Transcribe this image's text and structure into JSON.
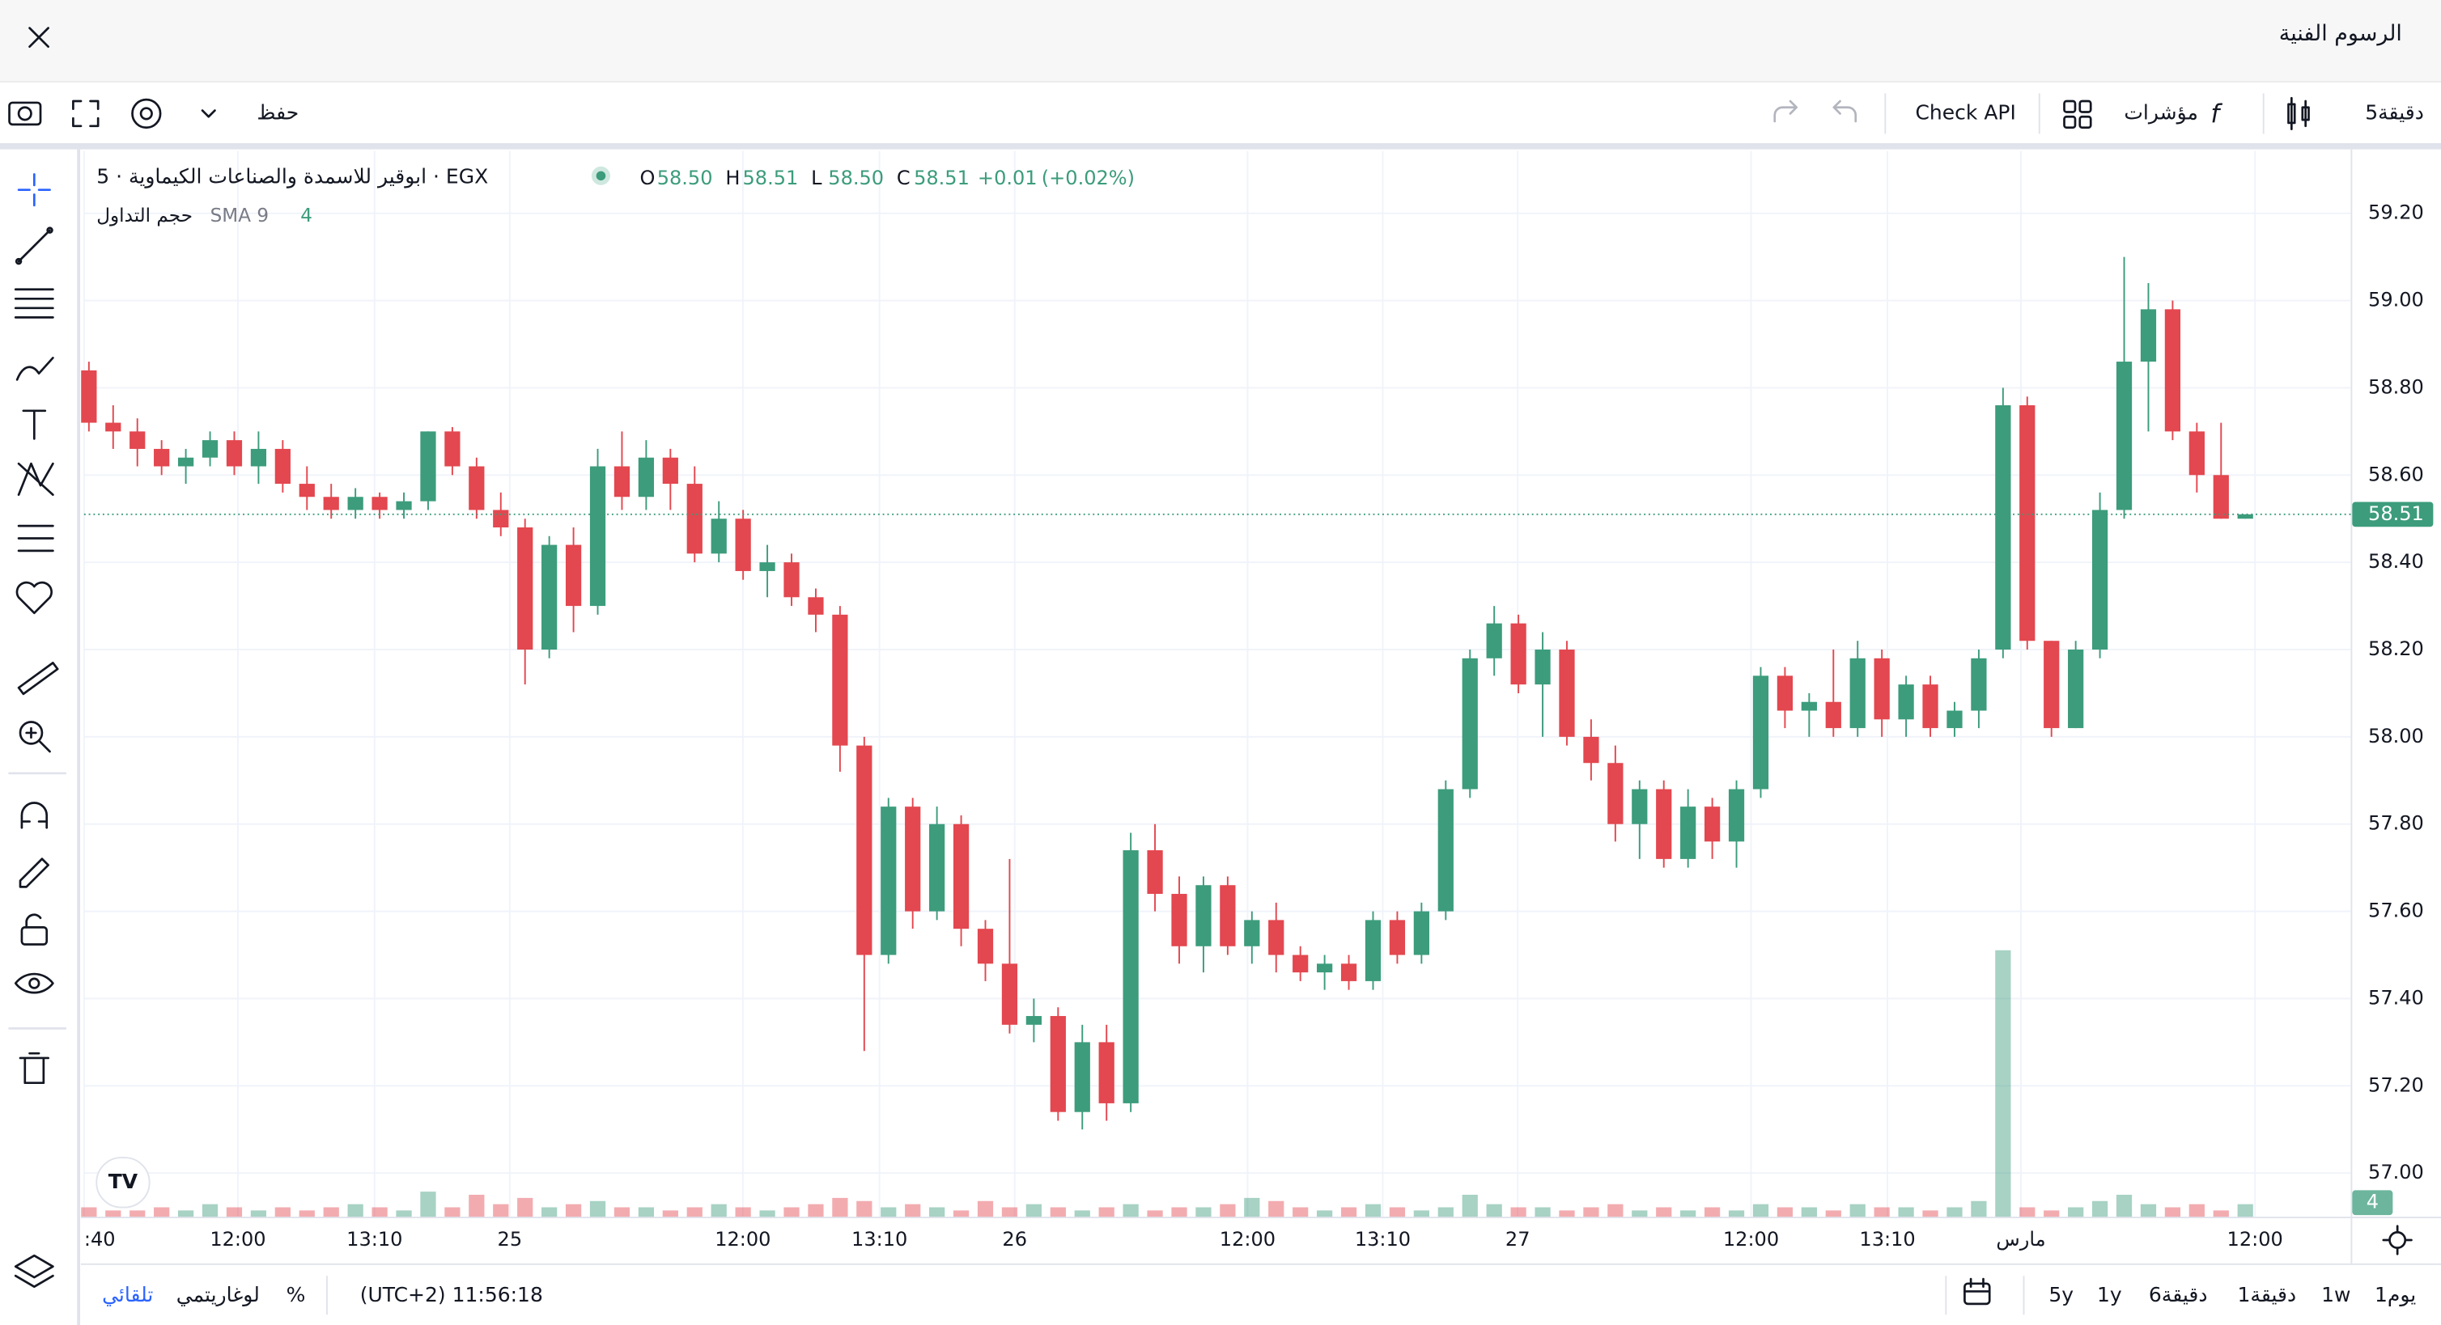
{
  "header": {
    "title": "الرسوم الفنية"
  },
  "toolbar": {
    "interval": "5دقيقة",
    "indicators": "مؤشرات",
    "check_api": "Check API",
    "save": "حفظ"
  },
  "bottom_bar": {
    "ranges": [
      "1يوم",
      "1w",
      "1دقيقة",
      "6دقيقة",
      "1y",
      "5y"
    ],
    "clock": "(UTC+2) 11:56:18",
    "percent": "%",
    "log": "لوغاريتمي",
    "auto": "تلقائي"
  },
  "chart_data": {
    "type": "candlestick",
    "symbol": "ابوقير للاسمدة والصناعات الكيماوية · 5 · EGX",
    "legend_labels": [
      "O",
      "H",
      "L",
      "C"
    ],
    "legend_values": [
      "58.50",
      "58.51",
      "58.50",
      "58.51"
    ],
    "change": "+0.01",
    "change_pct": "(+0.02%)",
    "volume_name": "حجم التداول",
    "sma_name": "SMA 9",
    "up_color": "#3c9c7c",
    "down_color": "#e3474f",
    "grid": true,
    "ylim": [
      56.9,
      59.343
    ],
    "yticks": [
      {
        "value": 57.0,
        "label": "57.00"
      },
      {
        "value": 57.2,
        "label": "57.20"
      },
      {
        "value": 57.4,
        "label": "57.40"
      },
      {
        "value": 57.6,
        "label": "57.60"
      },
      {
        "value": 57.8,
        "label": "57.80"
      },
      {
        "value": 58.0,
        "label": "58.00"
      },
      {
        "value": 58.2,
        "label": "58.20"
      },
      {
        "value": 58.4,
        "label": "58.40"
      },
      {
        "value": 58.6,
        "label": "58.60"
      },
      {
        "value": 58.8,
        "label": "58.80"
      },
      {
        "value": 59.0,
        "label": "59.00"
      },
      {
        "value": 59.2,
        "label": "59.20"
      }
    ],
    "xlim": [
      -0.2,
      93.35
    ],
    "xticks": [
      {
        "value": -0.2,
        "label": ":40"
      },
      {
        "value": 6.15,
        "label": "12:00"
      },
      {
        "value": 11.79,
        "label": "13:10"
      },
      {
        "value": 17.37,
        "label": "25"
      },
      {
        "value": 26.99,
        "label": "12:00"
      },
      {
        "value": 32.63,
        "label": "13:10"
      },
      {
        "value": 38.21,
        "label": "26"
      },
      {
        "value": 47.82,
        "label": "12:00"
      },
      {
        "value": 53.4,
        "label": "13:10"
      },
      {
        "value": 58.97,
        "label": "27"
      },
      {
        "value": 68.6,
        "label": "12:00"
      },
      {
        "value": 74.23,
        "label": "13:10"
      },
      {
        "value": 79.74,
        "label": "مارس"
      },
      {
        "value": 89.4,
        "label": "12:00"
      }
    ],
    "ohlc": [
      [
        58.84,
        58.86,
        58.7,
        58.72
      ],
      [
        58.72,
        58.76,
        58.66,
        58.7
      ],
      [
        58.7,
        58.73,
        58.62,
        58.66
      ],
      [
        58.66,
        58.68,
        58.6,
        58.62
      ],
      [
        58.62,
        58.66,
        58.58,
        58.64
      ],
      [
        58.64,
        58.7,
        58.62,
        58.68
      ],
      [
        58.68,
        58.7,
        58.6,
        58.62
      ],
      [
        58.62,
        58.7,
        58.58,
        58.66
      ],
      [
        58.66,
        58.68,
        58.56,
        58.58
      ],
      [
        58.58,
        58.62,
        58.52,
        58.55
      ],
      [
        58.55,
        58.58,
        58.5,
        58.52
      ],
      [
        58.52,
        58.57,
        58.5,
        58.55
      ],
      [
        58.55,
        58.56,
        58.5,
        58.52
      ],
      [
        58.52,
        58.56,
        58.5,
        58.54
      ],
      [
        58.54,
        58.7,
        58.52,
        58.7
      ],
      [
        58.7,
        58.71,
        58.6,
        58.62
      ],
      [
        58.62,
        58.64,
        58.5,
        58.52
      ],
      [
        58.52,
        58.56,
        58.46,
        58.48
      ],
      [
        58.48,
        58.5,
        58.12,
        58.2
      ],
      [
        58.2,
        58.46,
        58.18,
        58.44
      ],
      [
        58.44,
        58.48,
        58.24,
        58.3
      ],
      [
        58.3,
        58.66,
        58.28,
        58.62
      ],
      [
        58.62,
        58.7,
        58.52,
        58.55
      ],
      [
        58.55,
        58.68,
        58.52,
        58.64
      ],
      [
        58.64,
        58.66,
        58.52,
        58.58
      ],
      [
        58.58,
        58.62,
        58.4,
        58.42
      ],
      [
        58.42,
        58.54,
        58.4,
        58.5
      ],
      [
        58.5,
        58.52,
        58.36,
        58.38
      ],
      [
        58.38,
        58.44,
        58.32,
        58.4
      ],
      [
        58.4,
        58.42,
        58.3,
        58.32
      ],
      [
        58.32,
        58.34,
        58.24,
        58.28
      ],
      [
        58.28,
        58.3,
        57.92,
        57.98
      ],
      [
        57.98,
        58.0,
        57.28,
        57.5
      ],
      [
        57.5,
        57.86,
        57.48,
        57.84
      ],
      [
        57.84,
        57.86,
        57.56,
        57.6
      ],
      [
        57.6,
        57.84,
        57.58,
        57.8
      ],
      [
        57.8,
        57.82,
        57.52,
        57.56
      ],
      [
        57.56,
        57.58,
        57.44,
        57.48
      ],
      [
        57.48,
        57.72,
        57.32,
        57.34
      ],
      [
        57.34,
        57.4,
        57.3,
        57.36
      ],
      [
        57.36,
        57.38,
        57.12,
        57.14
      ],
      [
        57.14,
        57.34,
        57.1,
        57.3
      ],
      [
        57.3,
        57.34,
        57.12,
        57.16
      ],
      [
        57.16,
        57.78,
        57.14,
        57.74
      ],
      [
        57.74,
        57.8,
        57.6,
        57.64
      ],
      [
        57.64,
        57.68,
        57.48,
        57.52
      ],
      [
        57.52,
        57.68,
        57.46,
        57.66
      ],
      [
        57.66,
        57.68,
        57.5,
        57.52
      ],
      [
        57.52,
        57.6,
        57.48,
        57.58
      ],
      [
        57.58,
        57.62,
        57.46,
        57.5
      ],
      [
        57.5,
        57.52,
        57.44,
        57.46
      ],
      [
        57.46,
        57.5,
        57.42,
        57.48
      ],
      [
        57.48,
        57.5,
        57.42,
        57.44
      ],
      [
        57.44,
        57.6,
        57.42,
        57.58
      ],
      [
        57.58,
        57.6,
        57.48,
        57.5
      ],
      [
        57.5,
        57.62,
        57.48,
        57.6
      ],
      [
        57.6,
        57.9,
        57.58,
        57.88
      ],
      [
        57.88,
        58.2,
        57.86,
        58.18
      ],
      [
        58.18,
        58.3,
        58.14,
        58.26
      ],
      [
        58.26,
        58.28,
        58.1,
        58.12
      ],
      [
        58.12,
        58.24,
        58.0,
        58.2
      ],
      [
        58.2,
        58.22,
        57.98,
        58.0
      ],
      [
        58.0,
        58.04,
        57.9,
        57.94
      ],
      [
        57.94,
        57.98,
        57.76,
        57.8
      ],
      [
        57.8,
        57.9,
        57.72,
        57.88
      ],
      [
        57.88,
        57.9,
        57.7,
        57.72
      ],
      [
        57.72,
        57.88,
        57.7,
        57.84
      ],
      [
        57.84,
        57.86,
        57.72,
        57.76
      ],
      [
        57.76,
        57.9,
        57.7,
        57.88
      ],
      [
        57.88,
        58.16,
        57.86,
        58.14
      ],
      [
        58.14,
        58.16,
        58.02,
        58.06
      ],
      [
        58.06,
        58.1,
        58.0,
        58.08
      ],
      [
        58.08,
        58.2,
        58.0,
        58.02
      ],
      [
        58.02,
        58.22,
        58.0,
        58.18
      ],
      [
        58.18,
        58.2,
        58.0,
        58.04
      ],
      [
        58.04,
        58.14,
        58.0,
        58.12
      ],
      [
        58.12,
        58.14,
        58.0,
        58.02
      ],
      [
        58.02,
        58.08,
        58.0,
        58.06
      ],
      [
        58.06,
        58.2,
        58.02,
        58.18
      ],
      [
        58.2,
        58.8,
        58.18,
        58.76
      ],
      [
        58.76,
        58.78,
        58.2,
        58.22
      ],
      [
        58.22,
        58.22,
        58.0,
        58.02
      ],
      [
        58.02,
        58.22,
        58.02,
        58.2
      ],
      [
        58.2,
        58.56,
        58.18,
        58.52
      ],
      [
        58.52,
        59.1,
        58.5,
        58.86
      ],
      [
        58.86,
        59.04,
        58.7,
        58.98
      ],
      [
        58.98,
        59.0,
        58.68,
        58.7
      ],
      [
        58.7,
        58.72,
        58.56,
        58.6
      ],
      [
        58.6,
        58.72,
        58.5,
        58.5
      ],
      [
        58.5,
        58.51,
        58.5,
        58.51
      ]
    ],
    "volume": [
      3,
      2,
      2,
      3,
      2,
      4,
      3,
      2,
      3,
      2,
      3,
      4,
      3,
      2,
      8,
      3,
      7,
      4,
      6,
      3,
      4,
      5,
      3,
      3,
      2,
      3,
      4,
      3,
      2,
      3,
      4,
      6,
      5,
      3,
      4,
      3,
      2,
      5,
      3,
      4,
      3,
      2,
      3,
      4,
      2,
      3,
      3,
      4,
      6,
      5,
      3,
      2,
      3,
      4,
      3,
      2,
      3,
      7,
      4,
      3,
      3,
      2,
      3,
      4,
      2,
      3,
      2,
      3,
      2,
      4,
      3,
      3,
      2,
      4,
      3,
      3,
      2,
      3,
      5,
      85,
      3,
      2,
      3,
      5,
      7,
      4,
      3,
      4,
      2,
      4
    ],
    "volume_ylim": [
      0,
      340
    ]
  }
}
